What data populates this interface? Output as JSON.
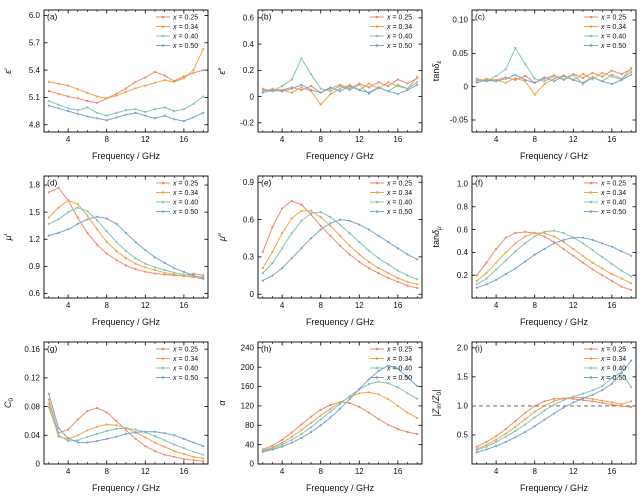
{
  "figure": {
    "xlabel": "Frequency / GHz",
    "x": [
      2,
      3,
      4,
      5,
      6,
      7,
      8,
      9,
      10,
      11,
      12,
      13,
      14,
      15,
      16,
      17,
      18
    ],
    "xlim": [
      1.5,
      18.5
    ],
    "xtick_vals": [
      4,
      8,
      12,
      16
    ],
    "xtick_labels": [
      "4",
      "8",
      "12",
      "16"
    ],
    "xminor_vals": [
      2,
      3,
      5,
      6,
      7,
      9,
      10,
      11,
      13,
      14,
      15,
      17,
      18
    ],
    "legend": [
      "x = 0.25",
      "x = 0.34",
      "x = 0.40",
      "x = 0.50"
    ],
    "colors": [
      "#ef8a6e",
      "#f2a44a",
      "#83c6b0",
      "#7ba6c9"
    ],
    "refline_color": "#555555"
  },
  "chart_data": [
    {
      "type": "line",
      "panel": "(a)",
      "ylabel": [
        {
          "t": "ε",
          "i": true
        },
        {
          "t": "′"
        }
      ],
      "ylim": [
        4.72,
        6.06
      ],
      "ytick_vals": [
        4.8,
        5.1,
        5.4,
        5.7,
        6.0
      ],
      "ytick_labels": [
        "4.8",
        "5.1",
        "5.4",
        "5.7",
        "6.0"
      ],
      "series": [
        [
          5.17,
          5.14,
          5.11,
          5.09,
          5.06,
          5.04,
          5.09,
          5.14,
          5.2,
          5.27,
          5.32,
          5.38,
          5.34,
          5.28,
          5.33,
          5.37,
          5.4
        ],
        [
          5.27,
          5.25,
          5.23,
          5.19,
          5.15,
          5.11,
          5.09,
          5.12,
          5.16,
          5.2,
          5.23,
          5.26,
          5.29,
          5.27,
          5.31,
          5.4,
          5.63
        ],
        [
          5.06,
          5.02,
          4.98,
          4.96,
          4.99,
          4.93,
          4.9,
          4.93,
          4.96,
          4.97,
          4.94,
          4.97,
          4.99,
          4.95,
          4.97,
          5.03,
          5.11
        ],
        [
          5.01,
          4.98,
          4.95,
          4.92,
          4.89,
          4.87,
          4.85,
          4.88,
          4.91,
          4.93,
          4.9,
          4.87,
          4.9,
          4.86,
          4.84,
          4.88,
          4.93
        ]
      ]
    },
    {
      "type": "line",
      "panel": "(b)",
      "ylabel": [
        {
          "t": "ε",
          "i": true
        },
        {
          "t": "″"
        }
      ],
      "ylim": [
        -0.27,
        0.66
      ],
      "ytick_vals": [
        -0.2,
        0,
        0.2,
        0.4,
        0.6
      ],
      "ytick_labels": [
        "-0.2",
        "0",
        "0.2",
        "0.4",
        "0.6"
      ],
      "series": [
        [
          0.06,
          0.04,
          0.05,
          0.07,
          0.05,
          0.08,
          0.03,
          0.06,
          0.09,
          0.06,
          0.1,
          0.07,
          0.11,
          0.08,
          0.13,
          0.1,
          0.14
        ],
        [
          0.04,
          0.06,
          0.05,
          0.03,
          0.07,
          0.04,
          -0.06,
          0.02,
          0.06,
          0.09,
          0.05,
          0.1,
          0.06,
          0.11,
          0.08,
          0.06,
          0.15
        ],
        [
          0.05,
          0.04,
          0.08,
          0.13,
          0.29,
          0.17,
          0.06,
          0.04,
          0.08,
          0.05,
          0.09,
          0.02,
          0.07,
          0.04,
          0.09,
          0.06,
          0.11
        ],
        [
          0.03,
          0.05,
          0.04,
          0.06,
          0.09,
          0.05,
          0.03,
          0.07,
          0.04,
          0.08,
          0.05,
          0.03,
          0.07,
          0.04,
          0.02,
          0.05,
          0.09
        ]
      ]
    },
    {
      "type": "line",
      "panel": "(c)",
      "ylabel": [
        {
          "t": "tan"
        },
        {
          "t": "δ",
          "i": true
        },
        {
          "t": "ε",
          "i": true,
          "sub": true
        }
      ],
      "ylim": [
        -0.068,
        0.115
      ],
      "ytick_vals": [
        -0.05,
        0,
        0.05,
        0.1
      ],
      "ytick_labels": [
        "-0.05",
        "0",
        "0.05",
        "0.10"
      ],
      "series": [
        [
          0.012,
          0.008,
          0.01,
          0.014,
          0.01,
          0.016,
          0.006,
          0.012,
          0.017,
          0.011,
          0.019,
          0.013,
          0.021,
          0.015,
          0.024,
          0.019,
          0.026
        ],
        [
          0.008,
          0.012,
          0.01,
          0.006,
          0.013,
          0.008,
          -0.012,
          0.004,
          0.012,
          0.017,
          0.01,
          0.019,
          0.011,
          0.021,
          0.015,
          0.011,
          0.028
        ],
        [
          0.01,
          0.008,
          0.016,
          0.026,
          0.058,
          0.034,
          0.012,
          0.008,
          0.016,
          0.01,
          0.018,
          0.004,
          0.014,
          0.008,
          0.018,
          0.012,
          0.022
        ],
        [
          0.006,
          0.01,
          0.008,
          0.012,
          0.018,
          0.01,
          0.006,
          0.014,
          0.008,
          0.016,
          0.01,
          0.006,
          0.014,
          0.008,
          0.004,
          0.01,
          0.018
        ]
      ]
    },
    {
      "type": "line",
      "panel": "(d)",
      "ylabel": [
        {
          "t": "μ",
          "i": true
        },
        {
          "t": "′"
        }
      ],
      "ylim": [
        0.55,
        1.9
      ],
      "ytick_vals": [
        0.6,
        0.9,
        1.2,
        1.5,
        1.8
      ],
      "ytick_labels": [
        "0.6",
        "0.9",
        "1.2",
        "1.5",
        "1.8"
      ],
      "series": [
        [
          1.72,
          1.77,
          1.63,
          1.44,
          1.27,
          1.14,
          1.04,
          0.97,
          0.91,
          0.87,
          0.84,
          0.82,
          0.81,
          0.8,
          0.8,
          0.82,
          0.8
        ],
        [
          1.44,
          1.55,
          1.63,
          1.59,
          1.46,
          1.31,
          1.17,
          1.07,
          0.99,
          0.93,
          0.89,
          0.86,
          0.83,
          0.81,
          0.79,
          0.78,
          0.76
        ],
        [
          1.37,
          1.42,
          1.5,
          1.55,
          1.51,
          1.41,
          1.29,
          1.17,
          1.07,
          0.99,
          0.93,
          0.89,
          0.86,
          0.83,
          0.81,
          0.79,
          0.78
        ],
        [
          1.24,
          1.27,
          1.31,
          1.37,
          1.42,
          1.45,
          1.43,
          1.37,
          1.27,
          1.17,
          1.08,
          1.0,
          0.94,
          0.88,
          0.84,
          0.8,
          0.77
        ]
      ]
    },
    {
      "type": "line",
      "panel": "(e)",
      "ylabel": [
        {
          "t": "μ",
          "i": true
        },
        {
          "t": "″"
        }
      ],
      "ylim": [
        -0.03,
        0.95
      ],
      "ytick_vals": [
        0,
        0.3,
        0.6,
        0.9
      ],
      "ytick_labels": [
        "0",
        "0.3",
        "0.6",
        "0.9"
      ],
      "series": [
        [
          0.34,
          0.54,
          0.69,
          0.75,
          0.72,
          0.64,
          0.55,
          0.47,
          0.39,
          0.32,
          0.26,
          0.21,
          0.17,
          0.13,
          0.1,
          0.07,
          0.05
        ],
        [
          0.21,
          0.34,
          0.49,
          0.61,
          0.67,
          0.67,
          0.62,
          0.55,
          0.47,
          0.39,
          0.32,
          0.26,
          0.21,
          0.17,
          0.13,
          0.1,
          0.08
        ],
        [
          0.17,
          0.25,
          0.37,
          0.49,
          0.59,
          0.65,
          0.66,
          0.62,
          0.56,
          0.49,
          0.42,
          0.35,
          0.29,
          0.24,
          0.19,
          0.15,
          0.12
        ],
        [
          0.11,
          0.15,
          0.21,
          0.29,
          0.37,
          0.45,
          0.52,
          0.57,
          0.6,
          0.59,
          0.56,
          0.52,
          0.47,
          0.42,
          0.37,
          0.32,
          0.28
        ]
      ]
    },
    {
      "type": "line",
      "panel": "(f)",
      "ylabel": [
        {
          "t": "tan"
        },
        {
          "t": "δ",
          "i": true
        },
        {
          "t": "μ",
          "i": true,
          "sub": true
        }
      ],
      "ylim": [
        0,
        1.07
      ],
      "ytick_vals": [
        0.2,
        0.4,
        0.6,
        0.8,
        1.0
      ],
      "ytick_labels": [
        "0.2",
        "0.4",
        "0.6",
        "0.8",
        "1.0"
      ],
      "series": [
        [
          0.2,
          0.31,
          0.43,
          0.53,
          0.57,
          0.58,
          0.57,
          0.54,
          0.49,
          0.43,
          0.37,
          0.31,
          0.25,
          0.2,
          0.15,
          0.1,
          0.07
        ],
        [
          0.15,
          0.22,
          0.31,
          0.4,
          0.48,
          0.54,
          0.57,
          0.57,
          0.54,
          0.49,
          0.43,
          0.37,
          0.31,
          0.26,
          0.21,
          0.17,
          0.13
        ],
        [
          0.12,
          0.17,
          0.25,
          0.33,
          0.41,
          0.48,
          0.54,
          0.58,
          0.59,
          0.57,
          0.53,
          0.48,
          0.42,
          0.36,
          0.3,
          0.24,
          0.19
        ],
        [
          0.09,
          0.12,
          0.16,
          0.21,
          0.26,
          0.32,
          0.38,
          0.43,
          0.48,
          0.51,
          0.53,
          0.53,
          0.51,
          0.48,
          0.45,
          0.41,
          0.37
        ]
      ]
    },
    {
      "type": "line",
      "panel": "(g)",
      "ylabel": [
        {
          "t": "C",
          "i": true
        },
        {
          "t": "0",
          "sub": true
        }
      ],
      "ylim": [
        0,
        0.17
      ],
      "ytick_vals": [
        0,
        0.04,
        0.08,
        0.12,
        0.16
      ],
      "ytick_labels": [
        "0",
        "0.04",
        "0.08",
        "0.12",
        "0.16"
      ],
      "series": [
        [
          0.09,
          0.043,
          0.048,
          0.062,
          0.074,
          0.078,
          0.072,
          0.06,
          0.047,
          0.035,
          0.025,
          0.018,
          0.013,
          0.01,
          0.007,
          0.005,
          0.004
        ],
        [
          0.084,
          0.038,
          0.035,
          0.04,
          0.047,
          0.052,
          0.055,
          0.054,
          0.05,
          0.044,
          0.037,
          0.03,
          0.024,
          0.018,
          0.014,
          0.01,
          0.008
        ],
        [
          0.079,
          0.04,
          0.032,
          0.033,
          0.038,
          0.042,
          0.046,
          0.049,
          0.05,
          0.048,
          0.044,
          0.039,
          0.033,
          0.027,
          0.022,
          0.017,
          0.013
        ],
        [
          0.098,
          0.05,
          0.036,
          0.03,
          0.03,
          0.032,
          0.035,
          0.038,
          0.042,
          0.044,
          0.045,
          0.045,
          0.043,
          0.04,
          0.035,
          0.03,
          0.025
        ]
      ]
    },
    {
      "type": "line",
      "panel": "(h)",
      "ylabel": [
        {
          "t": "α",
          "i": true
        }
      ],
      "ylim": [
        0,
        252
      ],
      "ytick_vals": [
        0,
        40,
        80,
        120,
        160,
        200,
        240
      ],
      "ytick_labels": [
        "0",
        "40",
        "80",
        "120",
        "160",
        "200",
        "240"
      ],
      "series": [
        [
          30,
          38,
          50,
          65,
          82,
          98,
          112,
          122,
          128,
          126,
          118,
          106,
          93,
          81,
          72,
          66,
          62
        ],
        [
          28,
          34,
          44,
          56,
          70,
          85,
          100,
          114,
          127,
          138,
          146,
          148,
          144,
          134,
          120,
          106,
          95
        ],
        [
          27,
          32,
          40,
          50,
          62,
          76,
          92,
          108,
          124,
          140,
          154,
          165,
          170,
          167,
          158,
          146,
          135
        ],
        [
          25,
          30,
          36,
          44,
          54,
          66,
          80,
          96,
          114,
          134,
          155,
          175,
          192,
          203,
          197,
          179,
          161
        ]
      ]
    },
    {
      "type": "line",
      "panel": "(i)",
      "ylabel": [
        {
          "t": "|"
        },
        {
          "t": "Z",
          "i": true
        },
        {
          "t": "in",
          "sub": true
        },
        {
          "t": "/"
        },
        {
          "t": "Z",
          "i": true
        },
        {
          "t": "0",
          "sub": true
        },
        {
          "t": "|"
        }
      ],
      "ylim": [
        0,
        2.1
      ],
      "ytick_vals": [
        0.5,
        1.0,
        1.5,
        2.0
      ],
      "ytick_labels": [
        "0.5",
        "1.0",
        "1.5",
        "2.0"
      ],
      "refline": {
        "y": 1.0,
        "style": "dashed"
      },
      "series": [
        [
          0.3,
          0.38,
          0.48,
          0.6,
          0.74,
          0.88,
          1.0,
          1.08,
          1.12,
          1.13,
          1.12,
          1.1,
          1.08,
          1.05,
          1.02,
          1.0,
          0.98
        ],
        [
          0.26,
          0.33,
          0.42,
          0.52,
          0.64,
          0.77,
          0.9,
          1.0,
          1.08,
          1.13,
          1.15,
          1.14,
          1.12,
          1.09,
          1.06,
          1.03,
          1.08
        ],
        [
          0.24,
          0.3,
          0.38,
          0.47,
          0.57,
          0.68,
          0.8,
          0.92,
          1.02,
          1.1,
          1.16,
          1.21,
          1.27,
          1.34,
          1.48,
          1.58,
          1.32
        ],
        [
          0.2,
          0.25,
          0.31,
          0.38,
          0.46,
          0.55,
          0.65,
          0.76,
          0.87,
          0.97,
          1.06,
          1.13,
          1.19,
          1.27,
          1.38,
          1.57,
          1.78
        ]
      ]
    }
  ]
}
